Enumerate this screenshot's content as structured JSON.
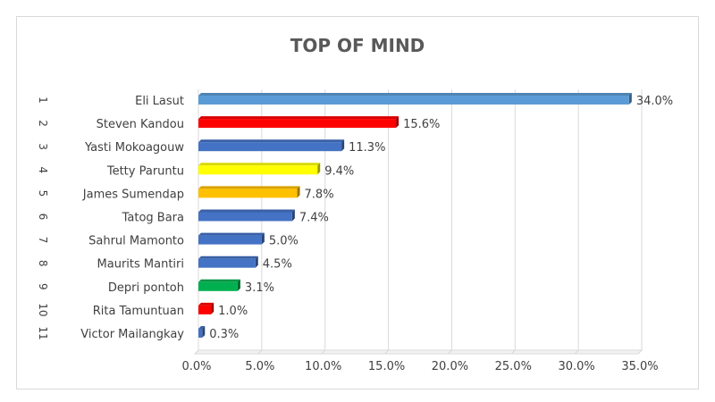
{
  "chart_data": {
    "type": "bar",
    "orientation": "horizontal",
    "title": "TOP OF MIND",
    "ranks": [
      "1",
      "2",
      "3",
      "4",
      "5",
      "6",
      "7",
      "8",
      "9",
      "10",
      "11"
    ],
    "categories": [
      "Eli Lasut",
      "Steven Kandou",
      "Yasti Mokoagouw",
      "Tetty Paruntu",
      "James Sumendap",
      "Tatog Bara",
      "Sahrul Mamonto",
      "Maurits Mantiri",
      "Depri pontoh",
      "Rita Tamuntuan",
      "Victor Mailangkay"
    ],
    "values": [
      34.0,
      15.6,
      11.3,
      9.4,
      7.8,
      7.4,
      5.0,
      4.5,
      3.1,
      1.0,
      0.3
    ],
    "value_labels": [
      "34.0%",
      "15.6%",
      "11.3%",
      "9.4%",
      "7.8%",
      "7.4%",
      "5.0%",
      "4.5%",
      "3.1%",
      "1.0%",
      "0.3%"
    ],
    "bar_colors": [
      "#5b9bd5",
      "#ff0000",
      "#4472c4",
      "#ffff00",
      "#ffc000",
      "#4472c4",
      "#4472c4",
      "#4472c4",
      "#00b050",
      "#ff0000",
      "#4472c4"
    ],
    "x_ticks": [
      "0.0%",
      "5.0%",
      "10.0%",
      "15.0%",
      "20.0%",
      "25.0%",
      "30.0%",
      "35.0%"
    ],
    "xlim": [
      0,
      35
    ],
    "xlabel": "",
    "ylabel": "",
    "grid": true,
    "legend": "none"
  }
}
